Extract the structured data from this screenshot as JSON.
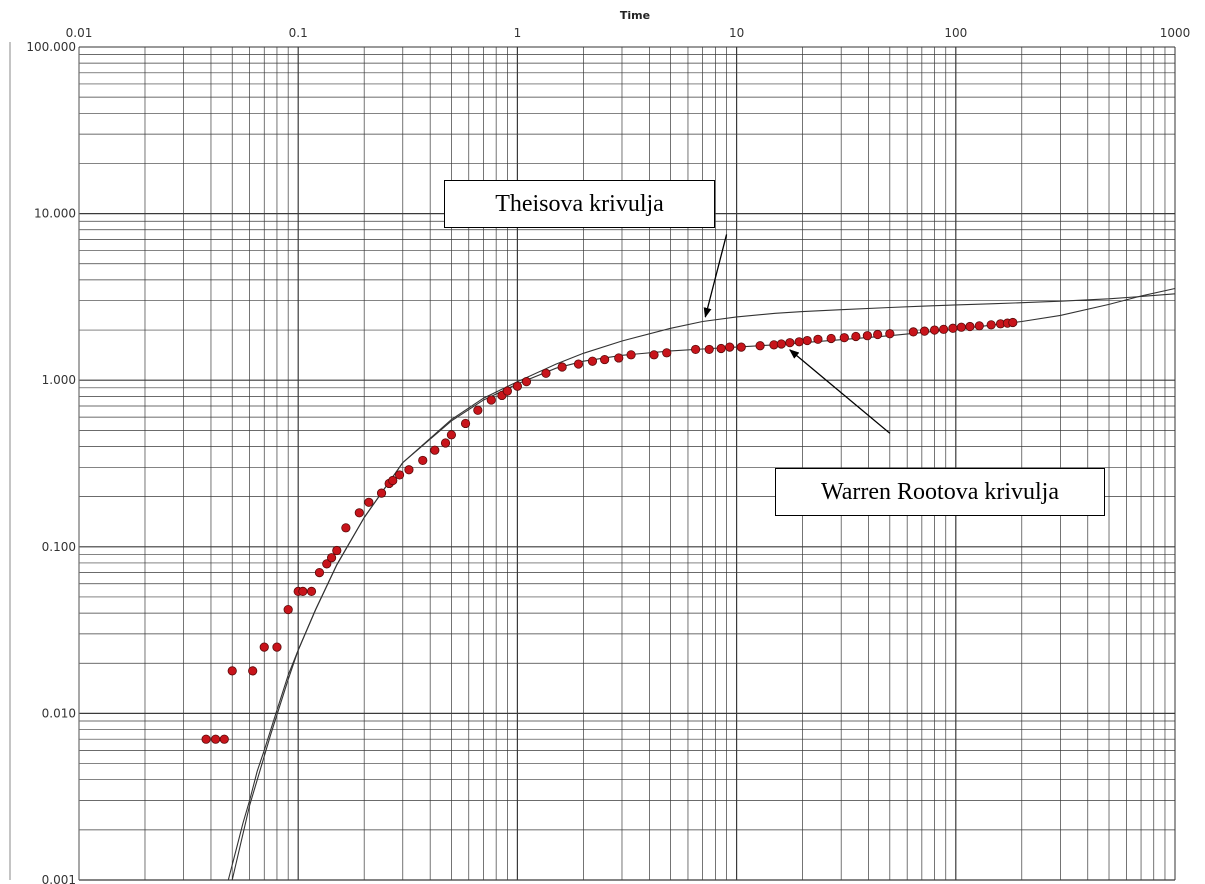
{
  "chart_data": {
    "type": "scatter",
    "title": "Time",
    "xlabel": "Time",
    "ylabel": "",
    "xscale": "log",
    "yscale": "log",
    "xlim": [
      0.01,
      1000
    ],
    "ylim": [
      0.001,
      100
    ],
    "x_tick_labels": [
      "0.01",
      "0.1",
      "1",
      "10",
      "100",
      "1000"
    ],
    "y_tick_labels": [
      "100.000",
      "10.000",
      "1.000",
      "0.100",
      "0.010",
      "0.001"
    ],
    "grid": true,
    "colors": {
      "points": "#c8141b",
      "point_edge": "#5a0a0a",
      "curves": "#333333",
      "grid": "#3a3a3a"
    },
    "series": [
      {
        "kind": "points",
        "x": [
          0.038,
          0.042,
          0.046,
          0.05,
          0.062,
          0.07,
          0.08,
          0.09,
          0.1,
          0.105,
          0.115,
          0.125,
          0.135,
          0.142,
          0.15,
          0.165,
          0.19,
          0.21,
          0.24,
          0.26,
          0.27,
          0.29,
          0.32,
          0.37,
          0.42,
          0.47,
          0.5,
          0.58,
          0.66,
          0.76,
          0.85,
          0.9,
          1.0,
          1.1,
          1.35,
          1.6,
          1.9,
          2.2,
          2.5,
          2.9,
          3.3,
          4.2,
          4.8,
          6.5,
          7.5,
          8.5,
          9.3,
          10.5,
          12.8,
          14.8,
          16.0,
          17.5,
          19.3,
          21.0,
          23.5,
          27.0,
          31.0,
          35.0,
          39.5,
          44.0,
          50.0,
          64.0,
          72.0,
          80.0,
          88.0,
          97.0,
          106.0,
          116.0,
          128.0,
          145.0,
          160.0,
          172.0,
          182.0
        ],
        "y": [
          0.007,
          0.007,
          0.007,
          0.018,
          0.018,
          0.025,
          0.025,
          0.042,
          0.054,
          0.054,
          0.054,
          0.07,
          0.079,
          0.086,
          0.095,
          0.13,
          0.16,
          0.185,
          0.21,
          0.24,
          0.25,
          0.27,
          0.29,
          0.33,
          0.38,
          0.42,
          0.47,
          0.55,
          0.66,
          0.76,
          0.81,
          0.86,
          0.92,
          0.98,
          1.1,
          1.2,
          1.25,
          1.3,
          1.33,
          1.36,
          1.42,
          1.42,
          1.46,
          1.53,
          1.53,
          1.55,
          1.58,
          1.58,
          1.61,
          1.63,
          1.65,
          1.68,
          1.7,
          1.73,
          1.76,
          1.78,
          1.8,
          1.83,
          1.85,
          1.88,
          1.9,
          1.95,
          1.97,
          2.0,
          2.02,
          2.05,
          2.08,
          2.1,
          2.12,
          2.15,
          2.18,
          2.2,
          2.22
        ]
      },
      {
        "kind": "curve",
        "x": [
          0.048,
          0.052,
          0.056,
          0.06,
          0.065,
          0.07,
          0.075,
          0.08,
          0.09,
          0.1,
          0.12,
          0.15,
          0.2,
          0.3,
          0.5,
          0.7,
          1.0,
          1.5,
          2.0,
          3.0,
          5.0,
          7.0,
          10.0,
          15.0,
          20.0,
          30.0,
          50.0,
          70.0,
          100.0,
          150.0,
          200.0,
          300.0,
          500.0,
          700.0,
          1000.0
        ],
        "y": [
          0.001,
          0.0015,
          0.0022,
          0.003,
          0.0045,
          0.006,
          0.008,
          0.0105,
          0.017,
          0.024,
          0.042,
          0.078,
          0.15,
          0.32,
          0.58,
          0.78,
          0.98,
          1.25,
          1.45,
          1.72,
          2.05,
          2.25,
          2.4,
          2.52,
          2.58,
          2.65,
          2.73,
          2.78,
          2.83,
          2.88,
          2.92,
          2.98,
          3.08,
          3.18,
          3.3
        ]
      },
      {
        "kind": "curve",
        "x": [
          0.05,
          0.06,
          0.075,
          0.09,
          0.1,
          0.12,
          0.15,
          0.2,
          0.3,
          0.5,
          0.7,
          1.0,
          1.5,
          2.0,
          3.0,
          5.0,
          7.0,
          10.0,
          15.0,
          20.0,
          30.0,
          50.0,
          70.0,
          100.0,
          150.0,
          200.0,
          300.0,
          500.0,
          700.0,
          1000.0
        ],
        "y": [
          0.001,
          0.0028,
          0.0075,
          0.016,
          0.024,
          0.042,
          0.078,
          0.15,
          0.32,
          0.57,
          0.76,
          0.95,
          1.18,
          1.3,
          1.41,
          1.5,
          1.54,
          1.58,
          1.63,
          1.68,
          1.75,
          1.85,
          1.93,
          2.02,
          2.15,
          2.25,
          2.45,
          2.85,
          3.2,
          3.55
        ]
      }
    ],
    "annotations": [
      {
        "text": "Theisova krivulja",
        "arrow_from": [
          9.0,
          7.5
        ],
        "arrow_to": [
          7.2,
          2.4
        ]
      },
      {
        "text": "Warren Rootova krivulja",
        "arrow_from": [
          50.0,
          0.48
        ],
        "arrow_to": [
          17.5,
          1.52
        ]
      }
    ]
  }
}
